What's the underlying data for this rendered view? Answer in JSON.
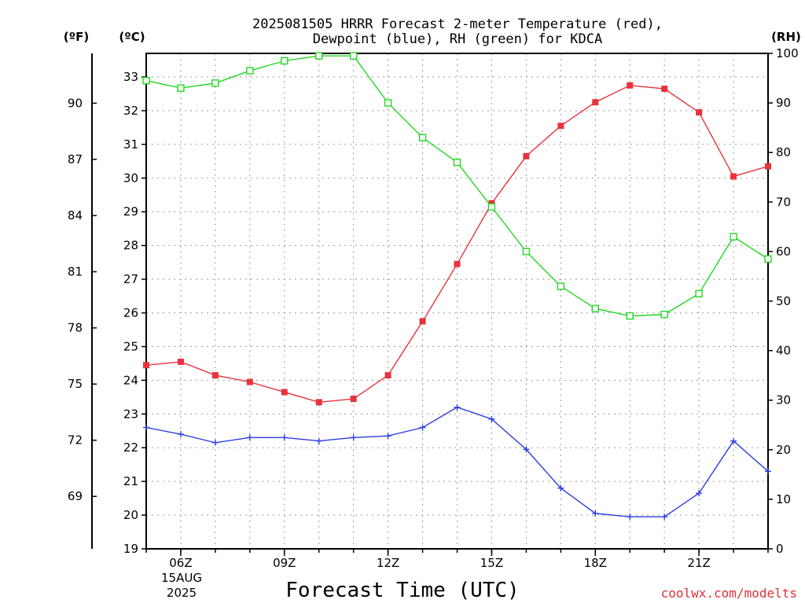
{
  "chart_data": {
    "type": "line",
    "title_line1": "2025081505 HRRR Forecast 2-meter Temperature (red),",
    "title_line2": "Dewpoint (blue), RH (green) for KDCA",
    "left_unit_f": "(ºF)",
    "left_unit_c": "(ºC)",
    "right_unit": "(RH)",
    "xlabel": "Forecast Time (UTC)",
    "credit": "coolwx.com/modelts",
    "date_label_line1": "15AUG",
    "date_label_line2": "2025",
    "x_hours": [
      5,
      6,
      7,
      8,
      9,
      10,
      11,
      12,
      13,
      14,
      15,
      16,
      17,
      18,
      19,
      20,
      21,
      22,
      23
    ],
    "x_ticks": [
      {
        "hour": 6,
        "label": "06Z"
      },
      {
        "hour": 9,
        "label": "09Z"
      },
      {
        "hour": 12,
        "label": "12Z"
      },
      {
        "hour": 15,
        "label": "15Z"
      },
      {
        "hour": 18,
        "label": "18Z"
      },
      {
        "hour": 21,
        "label": "21Z"
      }
    ],
    "xlim": [
      5,
      23
    ],
    "y_celsius_lim": [
      19,
      33.7
    ],
    "y_celsius_ticks": [
      19,
      20,
      21,
      22,
      23,
      24,
      25,
      26,
      27,
      28,
      29,
      30,
      31,
      32,
      33
    ],
    "y_fahrenheit_ticks": [
      69,
      72,
      75,
      78,
      81,
      84,
      87,
      90
    ],
    "y_rh_lim": [
      0,
      100
    ],
    "y_rh_ticks": [
      0,
      10,
      20,
      30,
      40,
      50,
      60,
      70,
      80,
      90,
      100
    ],
    "grid": true,
    "series": [
      {
        "name": "Temperature",
        "axis": "celsius",
        "color": "#e8323c",
        "marker": "filled-square",
        "values": [
          24.45,
          24.55,
          24.15,
          23.95,
          23.65,
          23.35,
          23.45,
          24.15,
          25.75,
          27.45,
          29.25,
          30.65,
          31.55,
          32.25,
          32.75,
          32.65,
          31.95,
          30.05,
          30.35
        ]
      },
      {
        "name": "Dewpoint",
        "axis": "celsius",
        "color": "#2d3fe0",
        "marker": "plus",
        "values": [
          22.6,
          22.4,
          22.15,
          22.3,
          22.3,
          22.2,
          22.3,
          22.35,
          22.6,
          23.2,
          22.85,
          21.95,
          20.8,
          20.05,
          19.95,
          19.95,
          20.65,
          22.2,
          21.3
        ]
      },
      {
        "name": "RH",
        "axis": "rh",
        "color": "#22d822",
        "marker": "open-square",
        "values": [
          94.5,
          93.0,
          94.0,
          96.5,
          98.5,
          99.5,
          99.5,
          90.0,
          83.0,
          78.0,
          69.0,
          60.0,
          53.0,
          48.5,
          47.0,
          47.3,
          51.5,
          63.0,
          58.5
        ]
      }
    ]
  }
}
